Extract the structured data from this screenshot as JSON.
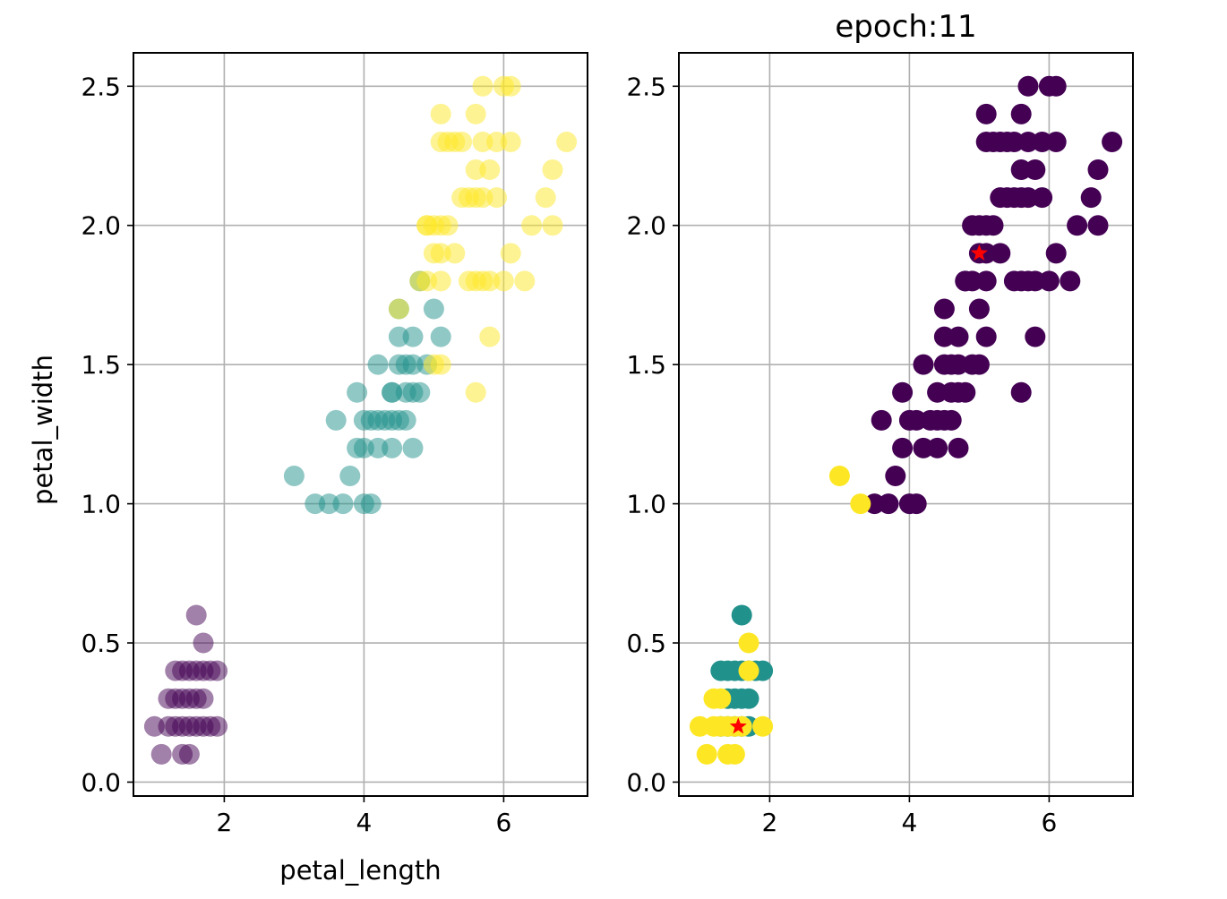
{
  "chart_data": [
    {
      "type": "scatter",
      "title": "",
      "xlabel": "petal_length",
      "ylabel": "petal_width",
      "xlim": [
        0.7,
        7.2
      ],
      "ylim": [
        -0.05,
        2.62
      ],
      "x_ticks": [
        2,
        4,
        6
      ],
      "y_ticks": [
        0.0,
        0.5,
        1.0,
        1.5,
        2.0,
        2.5
      ],
      "x_tick_labels": [
        "2",
        "4",
        "6"
      ],
      "y_tick_labels": [
        "0.0",
        "0.5",
        "1.0",
        "1.5",
        "2.0",
        "2.5"
      ],
      "grid": true,
      "point_alpha": 0.5,
      "series": [
        {
          "color": "#440154",
          "points": [
            [
              1.0,
              0.2
            ],
            [
              1.1,
              0.1
            ],
            [
              1.2,
              0.2
            ],
            [
              1.3,
              0.2
            ],
            [
              1.3,
              0.3
            ],
            [
              1.3,
              0.4
            ],
            [
              1.4,
              0.2
            ],
            [
              1.4,
              0.3
            ],
            [
              1.4,
              0.1
            ],
            [
              1.5,
              0.2
            ],
            [
              1.5,
              0.1
            ],
            [
              1.5,
              0.4
            ],
            [
              1.6,
              0.2
            ],
            [
              1.6,
              0.6
            ],
            [
              1.7,
              0.5
            ],
            [
              1.7,
              0.4
            ],
            [
              1.7,
              0.2
            ],
            [
              1.7,
              0.3
            ],
            [
              1.9,
              0.2
            ],
            [
              1.9,
              0.4
            ],
            [
              1.5,
              0.3
            ],
            [
              1.4,
              0.4
            ],
            [
              1.2,
              0.3
            ],
            [
              1.6,
              0.4
            ],
            [
              1.8,
              0.4
            ],
            [
              1.8,
              0.2
            ],
            [
              1.6,
              0.3
            ]
          ]
        },
        {
          "color": "#21918c",
          "points": [
            [
              3.0,
              1.1
            ],
            [
              3.3,
              1.0
            ],
            [
              3.5,
              1.0
            ],
            [
              3.6,
              1.3
            ],
            [
              3.7,
              1.0
            ],
            [
              3.8,
              1.1
            ],
            [
              3.9,
              1.4
            ],
            [
              3.9,
              1.2
            ],
            [
              4.0,
              1.0
            ],
            [
              4.0,
              1.3
            ],
            [
              4.0,
              1.2
            ],
            [
              4.1,
              1.0
            ],
            [
              4.1,
              1.3
            ],
            [
              4.2,
              1.5
            ],
            [
              4.2,
              1.2
            ],
            [
              4.2,
              1.3
            ],
            [
              4.3,
              1.3
            ],
            [
              4.4,
              1.4
            ],
            [
              4.4,
              1.3
            ],
            [
              4.4,
              1.2
            ],
            [
              4.5,
              1.5
            ],
            [
              4.5,
              1.3
            ],
            [
              4.5,
              1.6
            ],
            [
              4.6,
              1.3
            ],
            [
              4.6,
              1.4
            ],
            [
              4.6,
              1.5
            ],
            [
              4.7,
              1.4
            ],
            [
              4.7,
              1.6
            ],
            [
              4.7,
              1.2
            ],
            [
              4.8,
              1.4
            ],
            [
              4.8,
              1.8
            ],
            [
              4.9,
              1.5
            ],
            [
              5.0,
              1.7
            ],
            [
              5.1,
              1.6
            ],
            [
              4.5,
              1.7
            ],
            [
              4.7,
              1.5
            ],
            [
              4.4,
              1.4
            ]
          ]
        },
        {
          "color": "#fde725",
          "points": [
            [
              4.5,
              1.7
            ],
            [
              4.8,
              1.8
            ],
            [
              4.9,
              1.8
            ],
            [
              4.9,
              2.0
            ],
            [
              5.0,
              1.5
            ],
            [
              5.0,
              2.0
            ],
            [
              5.0,
              1.9
            ],
            [
              5.1,
              1.9
            ],
            [
              5.1,
              2.3
            ],
            [
              5.1,
              1.8
            ],
            [
              5.1,
              2.0
            ],
            [
              5.1,
              1.5
            ],
            [
              5.1,
              2.4
            ],
            [
              5.2,
              2.3
            ],
            [
              5.3,
              1.9
            ],
            [
              5.3,
              2.3
            ],
            [
              5.4,
              2.3
            ],
            [
              5.4,
              2.1
            ],
            [
              5.5,
              1.8
            ],
            [
              5.5,
              2.1
            ],
            [
              5.6,
              1.8
            ],
            [
              5.6,
              2.4
            ],
            [
              5.6,
              2.1
            ],
            [
              5.6,
              2.2
            ],
            [
              5.6,
              1.4
            ],
            [
              5.7,
              2.3
            ],
            [
              5.7,
              2.1
            ],
            [
              5.7,
              2.5
            ],
            [
              5.8,
              1.8
            ],
            [
              5.8,
              2.2
            ],
            [
              5.8,
              1.6
            ],
            [
              5.9,
              2.3
            ],
            [
              5.9,
              2.1
            ],
            [
              6.0,
              1.8
            ],
            [
              6.0,
              2.5
            ],
            [
              6.1,
              1.9
            ],
            [
              6.1,
              2.3
            ],
            [
              6.1,
              2.5
            ],
            [
              6.3,
              1.8
            ],
            [
              6.4,
              2.0
            ],
            [
              6.6,
              2.1
            ],
            [
              6.7,
              2.0
            ],
            [
              6.7,
              2.2
            ],
            [
              6.9,
              2.3
            ],
            [
              5.7,
              1.8
            ],
            [
              5.2,
              2.0
            ],
            [
              4.9,
              2.0
            ]
          ]
        }
      ]
    },
    {
      "type": "scatter",
      "title": "epoch:11",
      "xlabel": "",
      "ylabel": "",
      "xlim": [
        0.7,
        7.2
      ],
      "ylim": [
        -0.05,
        2.62
      ],
      "x_ticks": [
        2,
        4,
        6
      ],
      "y_ticks": [
        0.0,
        0.5,
        1.0,
        1.5,
        2.0,
        2.5
      ],
      "x_tick_labels": [
        "2",
        "4",
        "6"
      ],
      "y_tick_labels": [
        "0.0",
        "0.5",
        "1.0",
        "1.5",
        "2.0",
        "2.5"
      ],
      "grid": true,
      "point_alpha": 1.0,
      "series": [
        {
          "color": "#440154",
          "points": [
            [
              3.5,
              1.0
            ],
            [
              3.6,
              1.3
            ],
            [
              3.7,
              1.0
            ],
            [
              3.8,
              1.1
            ],
            [
              3.9,
              1.4
            ],
            [
              3.9,
              1.2
            ],
            [
              4.0,
              1.0
            ],
            [
              4.0,
              1.3
            ],
            [
              4.1,
              1.0
            ],
            [
              4.1,
              1.3
            ],
            [
              4.2,
              1.5
            ],
            [
              4.2,
              1.2
            ],
            [
              4.3,
              1.3
            ],
            [
              4.4,
              1.4
            ],
            [
              4.4,
              1.3
            ],
            [
              4.4,
              1.2
            ],
            [
              4.5,
              1.5
            ],
            [
              4.5,
              1.3
            ],
            [
              4.5,
              1.6
            ],
            [
              4.5,
              1.7
            ],
            [
              4.6,
              1.3
            ],
            [
              4.6,
              1.4
            ],
            [
              4.6,
              1.5
            ],
            [
              4.7,
              1.4
            ],
            [
              4.7,
              1.6
            ],
            [
              4.7,
              1.2
            ],
            [
              4.8,
              1.4
            ],
            [
              4.8,
              1.8
            ],
            [
              4.9,
              1.5
            ],
            [
              4.9,
              1.8
            ],
            [
              4.9,
              2.0
            ],
            [
              5.0,
              1.7
            ],
            [
              5.0,
              2.0
            ],
            [
              5.0,
              1.9
            ],
            [
              5.0,
              1.5
            ],
            [
              5.1,
              1.6
            ],
            [
              5.1,
              2.0
            ],
            [
              5.1,
              1.8
            ],
            [
              5.1,
              2.3
            ],
            [
              5.1,
              2.4
            ],
            [
              5.1,
              1.9
            ],
            [
              5.2,
              2.3
            ],
            [
              5.2,
              2.0
            ],
            [
              5.3,
              1.9
            ],
            [
              5.3,
              2.3
            ],
            [
              5.4,
              2.3
            ],
            [
              5.4,
              2.1
            ],
            [
              5.5,
              1.8
            ],
            [
              5.5,
              2.1
            ],
            [
              5.6,
              1.8
            ],
            [
              5.6,
              2.4
            ],
            [
              5.6,
              2.1
            ],
            [
              5.6,
              2.2
            ],
            [
              5.6,
              1.4
            ],
            [
              5.7,
              2.3
            ],
            [
              5.7,
              2.1
            ],
            [
              5.7,
              2.5
            ],
            [
              5.7,
              1.8
            ],
            [
              5.8,
              1.8
            ],
            [
              5.8,
              2.2
            ],
            [
              5.8,
              1.6
            ],
            [
              5.9,
              2.3
            ],
            [
              5.9,
              2.1
            ],
            [
              6.0,
              1.8
            ],
            [
              6.0,
              2.5
            ],
            [
              6.1,
              1.9
            ],
            [
              6.1,
              2.3
            ],
            [
              6.1,
              2.5
            ],
            [
              6.3,
              1.8
            ],
            [
              6.4,
              2.0
            ],
            [
              6.6,
              2.1
            ],
            [
              6.7,
              2.0
            ],
            [
              6.7,
              2.2
            ],
            [
              6.9,
              2.3
            ],
            [
              5.5,
              2.3
            ],
            [
              5.3,
              2.1
            ],
            [
              4.8,
              1.8
            ],
            [
              4.7,
              1.5
            ]
          ]
        },
        {
          "color": "#21918c",
          "points": [
            [
              1.3,
              0.4
            ],
            [
              1.4,
              0.4
            ],
            [
              1.5,
              0.4
            ],
            [
              1.6,
              0.6
            ],
            [
              1.7,
              0.4
            ],
            [
              1.9,
              0.4
            ],
            [
              1.4,
              0.3
            ],
            [
              1.5,
              0.3
            ],
            [
              1.6,
              0.3
            ],
            [
              1.7,
              0.3
            ],
            [
              1.5,
              0.2
            ],
            [
              1.6,
              0.2
            ],
            [
              1.7,
              0.2
            ],
            [
              1.6,
              0.4
            ],
            [
              1.8,
              0.4
            ],
            [
              1.3,
              0.2
            ],
            [
              1.4,
              0.2
            ]
          ]
        },
        {
          "color": "#fde725",
          "points": [
            [
              1.0,
              0.2
            ],
            [
              1.1,
              0.1
            ],
            [
              1.2,
              0.2
            ],
            [
              1.3,
              0.2
            ],
            [
              1.2,
              0.3
            ],
            [
              1.3,
              0.3
            ],
            [
              1.4,
              0.2
            ],
            [
              1.4,
              0.1
            ],
            [
              1.5,
              0.1
            ],
            [
              1.5,
              0.2
            ],
            [
              1.6,
              0.2
            ],
            [
              1.7,
              0.5
            ],
            [
              1.7,
              0.4
            ],
            [
              1.9,
              0.2
            ],
            [
              3.0,
              1.1
            ],
            [
              3.3,
              1.0
            ]
          ]
        }
      ],
      "centroids": {
        "color": "#ff0000",
        "points": [
          [
            1.55,
            0.2
          ],
          [
            5.0,
            1.9
          ]
        ]
      }
    }
  ]
}
